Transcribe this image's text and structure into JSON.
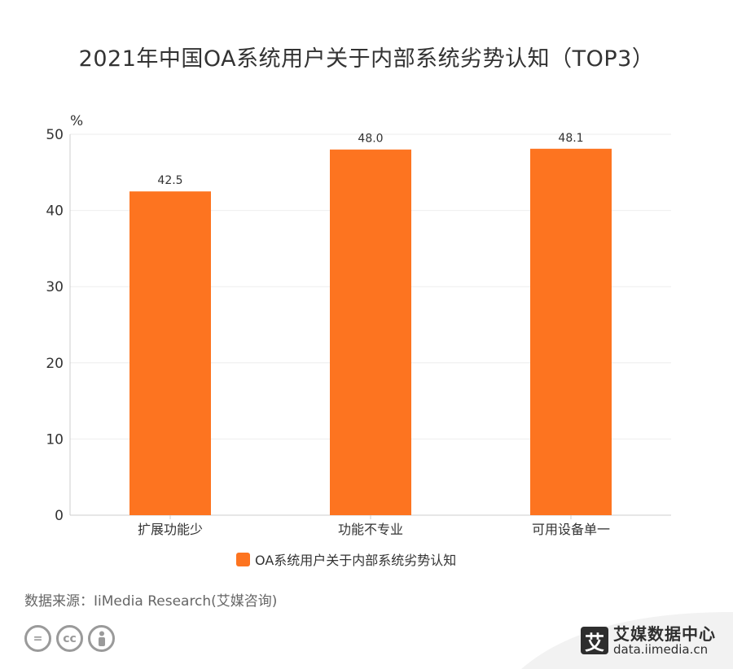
{
  "title": "2021年中国OA系统用户关于内部系统劣势认知（TOP3）",
  "chart_data": {
    "type": "bar",
    "title": "2021年中国OA系统用户关于内部系统劣势认知（TOP3）",
    "unit_label": "%",
    "categories": [
      "扩展功能少",
      "功能不专业",
      "可用设备单一"
    ],
    "series": [
      {
        "name": "OA系统用户关于内部系统劣势认知",
        "values": [
          42.5,
          48.0,
          48.1
        ],
        "labels": [
          "42.5",
          "48.0",
          "48.1"
        ],
        "color": "#fd7420"
      }
    ],
    "ylim": [
      0,
      50
    ],
    "yticks": [
      0,
      10,
      20,
      30,
      40,
      50
    ],
    "grid": true,
    "legend": "bottom"
  },
  "source": "数据来源：IiMedia Research(艾媒咨询)",
  "license_icons": [
    "equals-icon",
    "cc-icon",
    "person-icon"
  ],
  "brand": {
    "name": "艾媒数据中心",
    "url": "data.iimedia.cn",
    "logo_char": "艾"
  }
}
